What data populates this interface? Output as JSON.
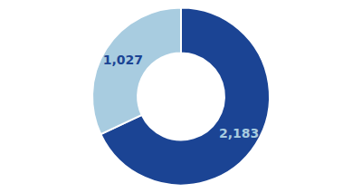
{
  "chart_data": {
    "type": "pie",
    "values": [
      2183,
      1027
    ],
    "value_labels": [
      "2,183",
      "1,027"
    ],
    "colors": [
      "#1b4494",
      "#a8cce0"
    ],
    "data_labels": true
  }
}
